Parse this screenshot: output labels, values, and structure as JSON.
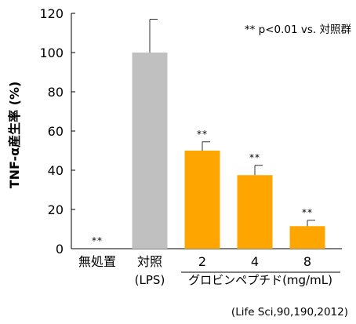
{
  "chart_data": {
    "type": "bar",
    "categories": [
      "無処置",
      "対照",
      "2",
      "4",
      "8"
    ],
    "category_sublabels": [
      "",
      "(LPS)",
      "",
      "",
      ""
    ],
    "values": [
      0,
      100,
      50,
      37.5,
      11.5
    ],
    "errors": [
      0,
      17,
      4.5,
      5,
      3
    ],
    "significance": [
      "**",
      "",
      "**",
      "**",
      "**"
    ],
    "bar_colors": [
      "#ffffff",
      "#c0c0c0",
      "#ffa500",
      "#ffa500",
      "#ffa500"
    ],
    "ylabel": "TNF-α産生率 (%)",
    "yticks": [
      0,
      20,
      40,
      60,
      80,
      100,
      120
    ],
    "ylim": [
      0,
      120
    ],
    "group_label": "グロビンペプチド(mg/mL)",
    "legend_note": "** p<0.01 vs. 対照群",
    "source": "(Life Sci,90,190,2012)"
  }
}
